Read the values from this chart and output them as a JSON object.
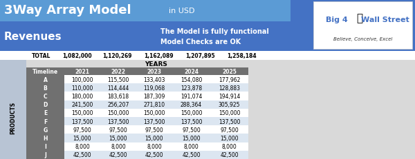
{
  "title": "3Way Array Model",
  "subtitle": "in USD",
  "section": "Revenues",
  "message1": "The Model is fully functional",
  "message2": "Model Checks are OK",
  "logo_text1": "Big 4",
  "logo_text2": "Wall Street",
  "logo_sub": "Believe, Conceive, Excel",
  "total_label": "TOTAL",
  "totals": [
    "1,082,000",
    "1,120,269",
    "1,162,089",
    "1,207,895",
    "1,258,184"
  ],
  "years_label": "YEARS",
  "products_label": "PRODUCTS",
  "col_headers": [
    "Timeline",
    "2021",
    "2022",
    "2023",
    "2024",
    "2025"
  ],
  "row_labels": [
    "A",
    "B",
    "C",
    "D",
    "E",
    "F",
    "G",
    "H",
    "I",
    "J"
  ],
  "table_data": [
    [
      "100,000",
      "115,500",
      "133,403",
      "154,080",
      "177,962"
    ],
    [
      "110,000",
      "114,444",
      "119,068",
      "123,878",
      "128,883"
    ],
    [
      "180,000",
      "183,618",
      "187,309",
      "191,074",
      "194,914"
    ],
    [
      "241,500",
      "256,207",
      "271,810",
      "288,364",
      "305,925"
    ],
    [
      "150,000",
      "150,000",
      "150,000",
      "150,000",
      "150,000"
    ],
    [
      "137,500",
      "137,500",
      "137,500",
      "137,500",
      "137,500"
    ],
    [
      "97,500",
      "97,500",
      "97,500",
      "97,500",
      "97,500"
    ],
    [
      "15,000",
      "15,000",
      "15,000",
      "15,000",
      "15,000"
    ],
    [
      "8,000",
      "8,000",
      "8,000",
      "8,000",
      "8,000"
    ],
    [
      "42,500",
      "42,500",
      "42,500",
      "42,500",
      "42,500"
    ]
  ],
  "header_bg": "#4472C4",
  "header_text": "#FFFFFF",
  "col_header_bg": "#707070",
  "col_header_text": "#FFFFFF",
  "alt_row1": "#FFFFFF",
  "alt_row2": "#DCE6F1",
  "table_bg": "#D9D9D9",
  "years_header_bg": "#D9D9D9",
  "years_header_text": "#000000",
  "total_bg": "#FFFFFF",
  "logo_bg": "#FFFFFF",
  "logo_blue": "#4472C4",
  "logo_red": "#CC0000",
  "body_bg": "#FFFFFF",
  "products_strip_bg": "#BFC7D5",
  "title_top_bg": "#5B9BD5",
  "subtitle_bg": "#5B9BD5"
}
